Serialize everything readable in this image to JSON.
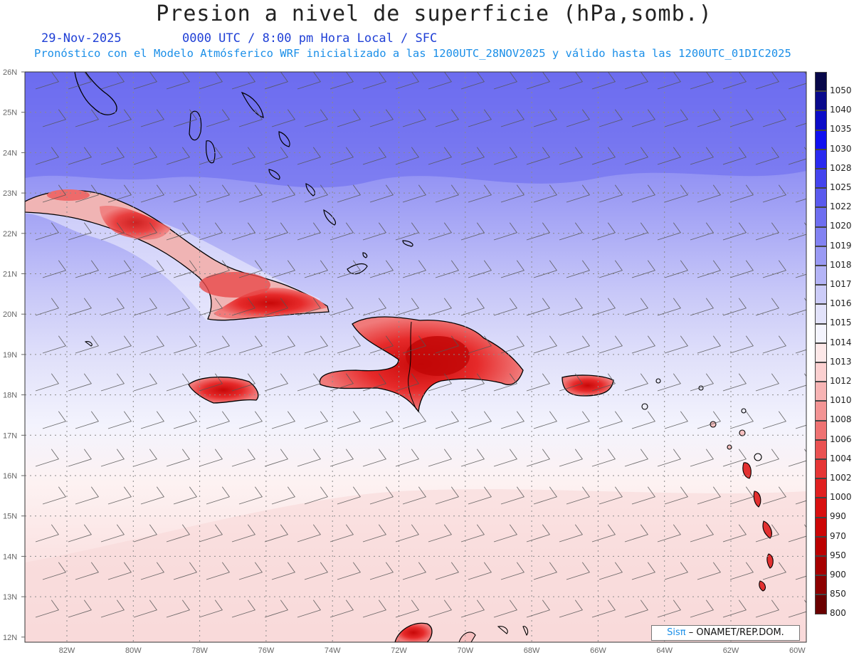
{
  "header": {
    "title": "Presion a nivel de superficie (hPa,somb.)",
    "date": "29-Nov-2025",
    "time": "0000 UTC / 8:00 pm Hora Local / SFC",
    "subtitle": "Pronóstico con el Modelo Atmósferico WRF inicializado a las 1200UTC_28NOV2025 y válido hasta las  1200UTC_01DIC2025"
  },
  "credit": {
    "brand": "Sisπ",
    "org": "– ONAMET/REP.DOM."
  },
  "axes": {
    "lat_labels": [
      "26N",
      "25N",
      "24N",
      "23N",
      "22N",
      "21N",
      "20N",
      "19N",
      "18N",
      "17N",
      "16N",
      "15N",
      "14N",
      "13N",
      "12N"
    ],
    "lon_labels": [
      "82W",
      "80W",
      "78W",
      "76W",
      "74W",
      "72W",
      "70W",
      "68W",
      "66W",
      "64W",
      "62W",
      "60W"
    ],
    "lat_range": [
      12,
      26
    ],
    "lon_range": [
      -83.2,
      -60
    ]
  },
  "legend": {
    "levels": [
      "1050",
      "1040",
      "1035",
      "1030",
      "1028",
      "1025",
      "1022",
      "1020",
      "1019",
      "1018",
      "1017",
      "1016",
      "1015",
      "1014",
      "1013",
      "1012",
      "1010",
      "1008",
      "1006",
      "1004",
      "1002",
      "1000",
      "990",
      "970",
      "950",
      "900",
      "850",
      "800"
    ],
    "colors": [
      "#08084a",
      "#0a0a8c",
      "#0c0cc8",
      "#1010f0",
      "#2a2af0",
      "#4444ee",
      "#5a5aee",
      "#6e6ef0",
      "#8282f2",
      "#9a9af4",
      "#b4b4f6",
      "#ccccf8",
      "#e2e2fa",
      "#f4f4fd",
      "#fde8e8",
      "#fbd0d0",
      "#f7b4b4",
      "#f39494",
      "#ef7272",
      "#ea5252",
      "#e63636",
      "#e02020",
      "#d81010",
      "#cc0606",
      "#bb0000",
      "#a60000",
      "#8c0000",
      "#6a0000"
    ]
  },
  "map": {
    "land_features": [
      "Florida",
      "Bahamas",
      "Cuba",
      "Jamaica",
      "Hispaniola",
      "Puerto Rico",
      "Lesser Antilles"
    ]
  }
}
